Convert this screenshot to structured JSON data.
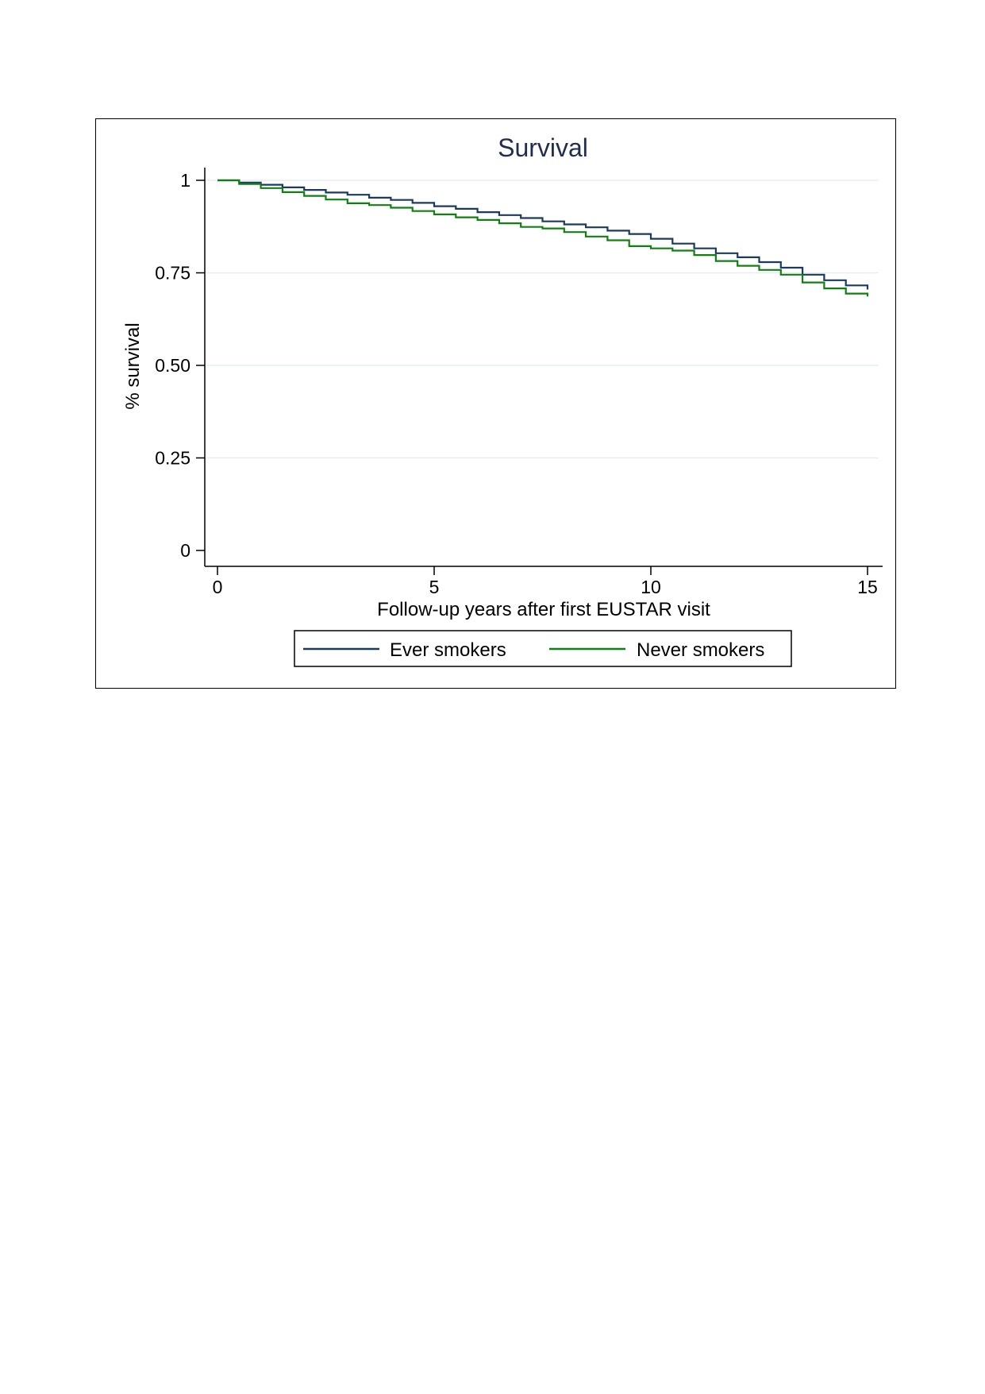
{
  "chart_data": {
    "type": "line",
    "title": "Survival",
    "xlabel": "Follow-up years after first EUSTAR visit",
    "ylabel": "% survival",
    "xlim": [
      0,
      15
    ],
    "ylim": [
      0,
      1
    ],
    "x_ticks": [
      "0",
      "5",
      "10",
      "15"
    ],
    "x_tick_values": [
      0,
      5,
      10,
      15
    ],
    "y_ticks": [
      "0",
      "0.25",
      "0.50",
      "0.75",
      "1"
    ],
    "y_tick_values": [
      0,
      0.25,
      0.5,
      0.75,
      1
    ],
    "grid": true,
    "legend_position": "bottom",
    "colors": {
      "title": "#1f2d4e",
      "grid": "#e8eef0",
      "ever_smokers": "#1a3a5f",
      "never_smokers": "#108010"
    },
    "series": [
      {
        "name": "Ever smokers",
        "x": [
          0,
          0.5,
          1,
          1.5,
          2,
          2.5,
          3,
          3.5,
          4,
          4.5,
          5,
          5.5,
          6,
          6.5,
          7,
          7.5,
          8,
          8.5,
          9,
          9.5,
          10,
          10.5,
          11,
          11.5,
          12,
          12.5,
          13,
          13.5,
          14,
          14.5,
          15
        ],
        "y": [
          1.0,
          0.994,
          0.988,
          0.981,
          0.974,
          0.967,
          0.961,
          0.953,
          0.947,
          0.939,
          0.93,
          0.923,
          0.914,
          0.906,
          0.898,
          0.889,
          0.881,
          0.873,
          0.864,
          0.855,
          0.842,
          0.829,
          0.816,
          0.803,
          0.792,
          0.779,
          0.764,
          0.745,
          0.73,
          0.716,
          0.705
        ]
      },
      {
        "name": "Never smokers",
        "x": [
          0,
          0.5,
          1,
          1.5,
          2,
          2.5,
          3,
          3.5,
          4,
          4.5,
          5,
          5.5,
          6,
          6.5,
          7,
          7.5,
          8,
          8.5,
          9,
          9.5,
          10,
          10.5,
          11,
          11.5,
          12,
          12.5,
          13,
          13.5,
          14,
          14.5,
          15
        ],
        "y": [
          1.0,
          0.99,
          0.979,
          0.968,
          0.958,
          0.948,
          0.938,
          0.933,
          0.926,
          0.917,
          0.908,
          0.9,
          0.893,
          0.884,
          0.874,
          0.87,
          0.86,
          0.848,
          0.838,
          0.822,
          0.816,
          0.81,
          0.798,
          0.782,
          0.769,
          0.758,
          0.745,
          0.724,
          0.708,
          0.694,
          0.686
        ]
      }
    ]
  }
}
